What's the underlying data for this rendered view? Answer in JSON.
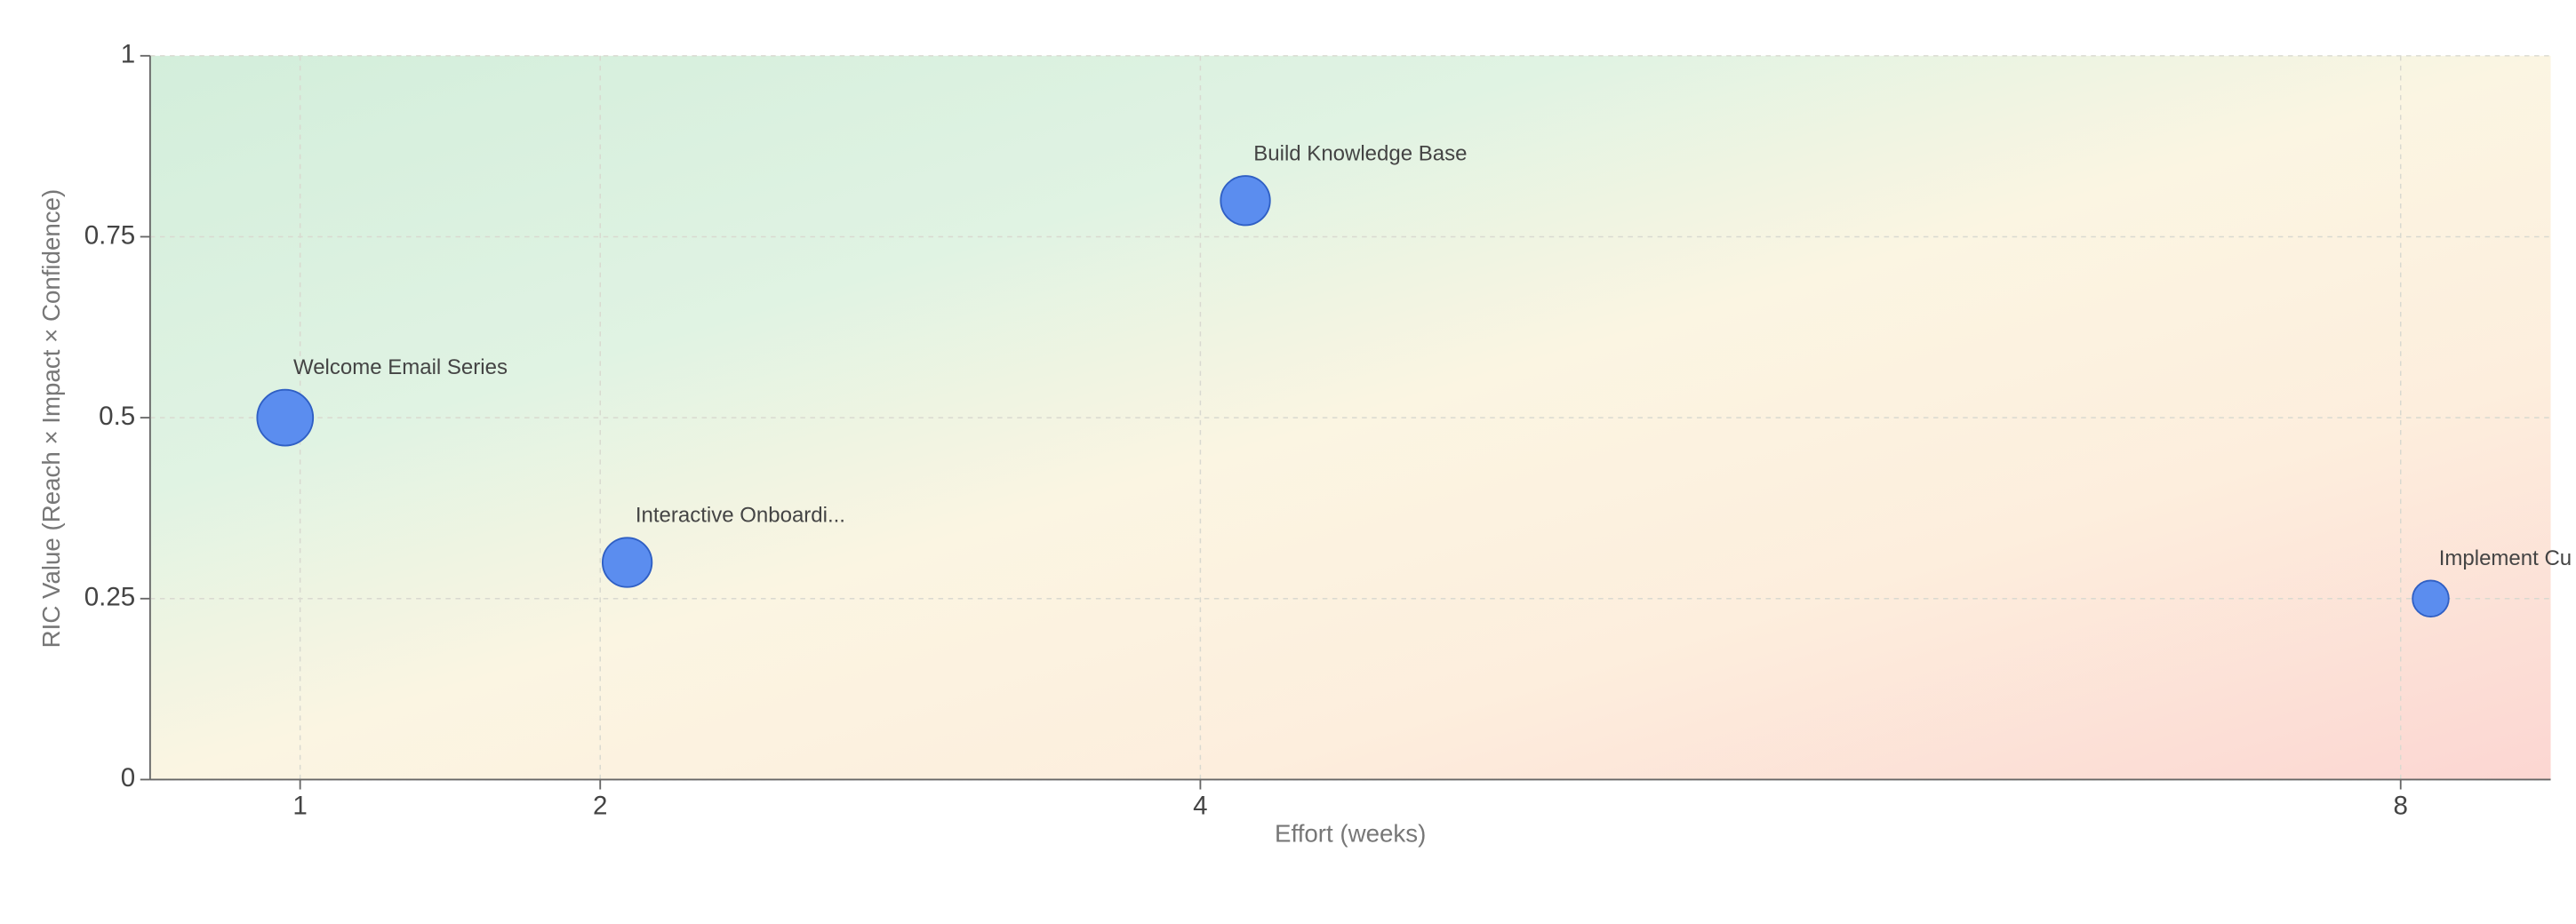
{
  "chart_data": {
    "type": "scatter",
    "x_label": "Effort (weeks)",
    "y_label": "RIC Value (Reach × Impact × Confidence)",
    "labels": [
      "Welcome Email Series",
      "Interactive Onboardi...",
      "Build Knowledge Base",
      "Implement Cu"
    ],
    "x": [
      0.95,
      2.09,
      4.15,
      8.1
    ],
    "values": [
      0.5,
      0.3,
      0.8,
      0.25
    ],
    "sizes": [
      17,
      15,
      15,
      11
    ],
    "color": "#5b8def",
    "xlim": [
      0.5,
      8.5
    ],
    "xticks": [
      1,
      2,
      4,
      8
    ],
    "ylim": [
      0,
      1
    ],
    "yticks": [
      0,
      0.25,
      0.5,
      0.75,
      1
    ],
    "grid": true
  }
}
